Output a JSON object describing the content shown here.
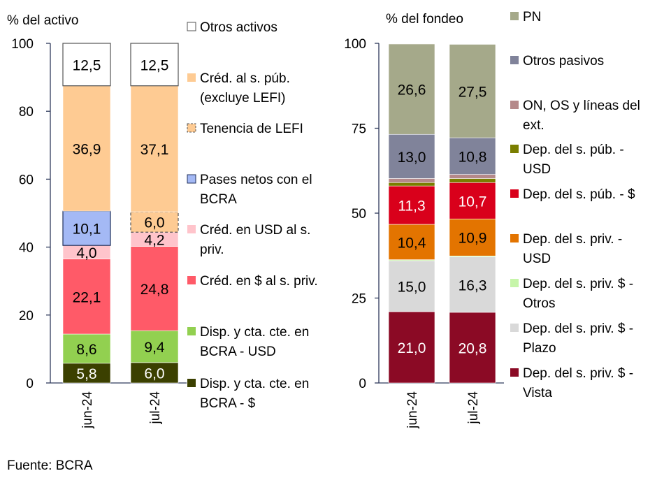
{
  "chart_data": [
    {
      "type": "bar",
      "stacked": true,
      "title": "",
      "ylabel": "% del activo",
      "ylim": [
        0,
        100
      ],
      "yticks": [
        "0",
        "20",
        "40",
        "60",
        "80",
        "100"
      ],
      "categories": [
        "jun-24",
        "jul-24"
      ],
      "series": [
        {
          "name": "Disp. y cta. cte. en BCRA - $",
          "lines": [
            "Disp. y cta. cte. en",
            "BCRA - $"
          ],
          "color": "#3b4000",
          "text_color": "#ffffff",
          "values": [
            5.8,
            6.0
          ]
        },
        {
          "name": "Disp. y cta. cte. en BCRA - USD",
          "lines": [
            "Disp. y cta. cte. en",
            "BCRA - USD"
          ],
          "color": "#92d050",
          "text_color": "#000000",
          "values": [
            8.6,
            9.4
          ]
        },
        {
          "name": "Créd. en $ al s. priv.",
          "lines": [
            "Créd. en $ al s. priv."
          ],
          "color": "#ff5a68",
          "text_color": "#000000",
          "values": [
            22.1,
            24.8
          ]
        },
        {
          "name": "Créd. en USD al s. priv.",
          "lines": [
            "Créd. en USD al s.",
            "priv."
          ],
          "color": "#ffc4cb",
          "text_color": "#000000",
          "values": [
            4.0,
            4.2
          ]
        },
        {
          "name": "Pases netos con el BCRA",
          "lines": [
            "Pases netos con el",
            "BCRA"
          ],
          "color": "#a4b9f5",
          "text_color": "#000000",
          "border": "#1f2f5a",
          "values": [
            10.1,
            0
          ]
        },
        {
          "name": "Tenencia de LEFI",
          "lines": [
            "Tenencia de LEFI"
          ],
          "color": "#fecb93",
          "text_color": "#000000",
          "border": "#555555",
          "dashed": true,
          "values": [
            0,
            6.0
          ]
        },
        {
          "name": "Créd. al s. púb. (excluye LEFI)",
          "lines": [
            "Créd. al s. púb.",
            "(excluye LEFI)"
          ],
          "color": "#fecb93",
          "text_color": "#000000",
          "values": [
            36.9,
            37.1
          ]
        },
        {
          "name": "Otros activos",
          "lines": [
            "Otros activos"
          ],
          "color": "#ffffff",
          "text_color": "#000000",
          "border": "#555555",
          "values": [
            12.5,
            12.5
          ]
        }
      ]
    },
    {
      "type": "bar",
      "stacked": true,
      "title": "",
      "ylabel": "% del fondeo",
      "ylim": [
        0,
        100
      ],
      "yticks": [
        "0",
        "25",
        "50",
        "75",
        "100"
      ],
      "categories": [
        "jun-24",
        "jul-24"
      ],
      "series": [
        {
          "name": "Dep. del s. priv. $ - Vista",
          "lines": [
            "Dep. del s. priv. $ -",
            "Vista"
          ],
          "color": "#8b0a25",
          "text_color": "#ffffff",
          "values": [
            21.0,
            20.8
          ]
        },
        {
          "name": "Dep. del s. priv. $ - Plazo",
          "lines": [
            "Dep. del s. priv. $ -",
            "Plazo"
          ],
          "color": "#d9d9d9",
          "text_color": "#000000",
          "values": [
            15.0,
            16.3
          ]
        },
        {
          "name": "Dep. del s. priv. $ - Otros",
          "lines": [
            "Dep. del s. priv. $ -",
            "Otros"
          ],
          "color": "#c6f5a9",
          "text_color": "#000000",
          "values": [
            0.3,
            0.3
          ]
        },
        {
          "name": "Dep. del s. priv. - USD",
          "lines": [
            "Dep. del s. priv. -",
            "USD"
          ],
          "color": "#e37400",
          "text_color": "#000000",
          "values": [
            10.4,
            10.9
          ]
        },
        {
          "name": "Dep. del s. púb. - $",
          "lines": [
            "Dep. del s. púb. - $"
          ],
          "color": "#d9001b",
          "text_color": "#ffffff",
          "values": [
            11.3,
            10.7
          ]
        },
        {
          "name": "Dep. del s. púb. - USD",
          "lines": [
            "Dep. del s. púb. -",
            "USD"
          ],
          "color": "#7a7e00",
          "text_color": "#000000",
          "values": [
            1.0,
            1.2
          ]
        },
        {
          "name": "ON, OS y líneas del ext.",
          "lines": [
            "ON, OS y líneas del",
            "ext."
          ],
          "color": "#b5898a",
          "text_color": "#000000",
          "values": [
            1.2,
            1.2
          ]
        },
        {
          "name": "Otros pasivos",
          "lines": [
            "Otros pasivos"
          ],
          "color": "#80839a",
          "text_color": "#000000",
          "values": [
            13.0,
            10.8
          ]
        },
        {
          "name": "PN",
          "lines": [
            "PN"
          ],
          "color": "#a5a98a",
          "text_color": "#000000",
          "values": [
            26.6,
            27.5
          ]
        }
      ]
    }
  ],
  "source": "Fuente: BCRA"
}
